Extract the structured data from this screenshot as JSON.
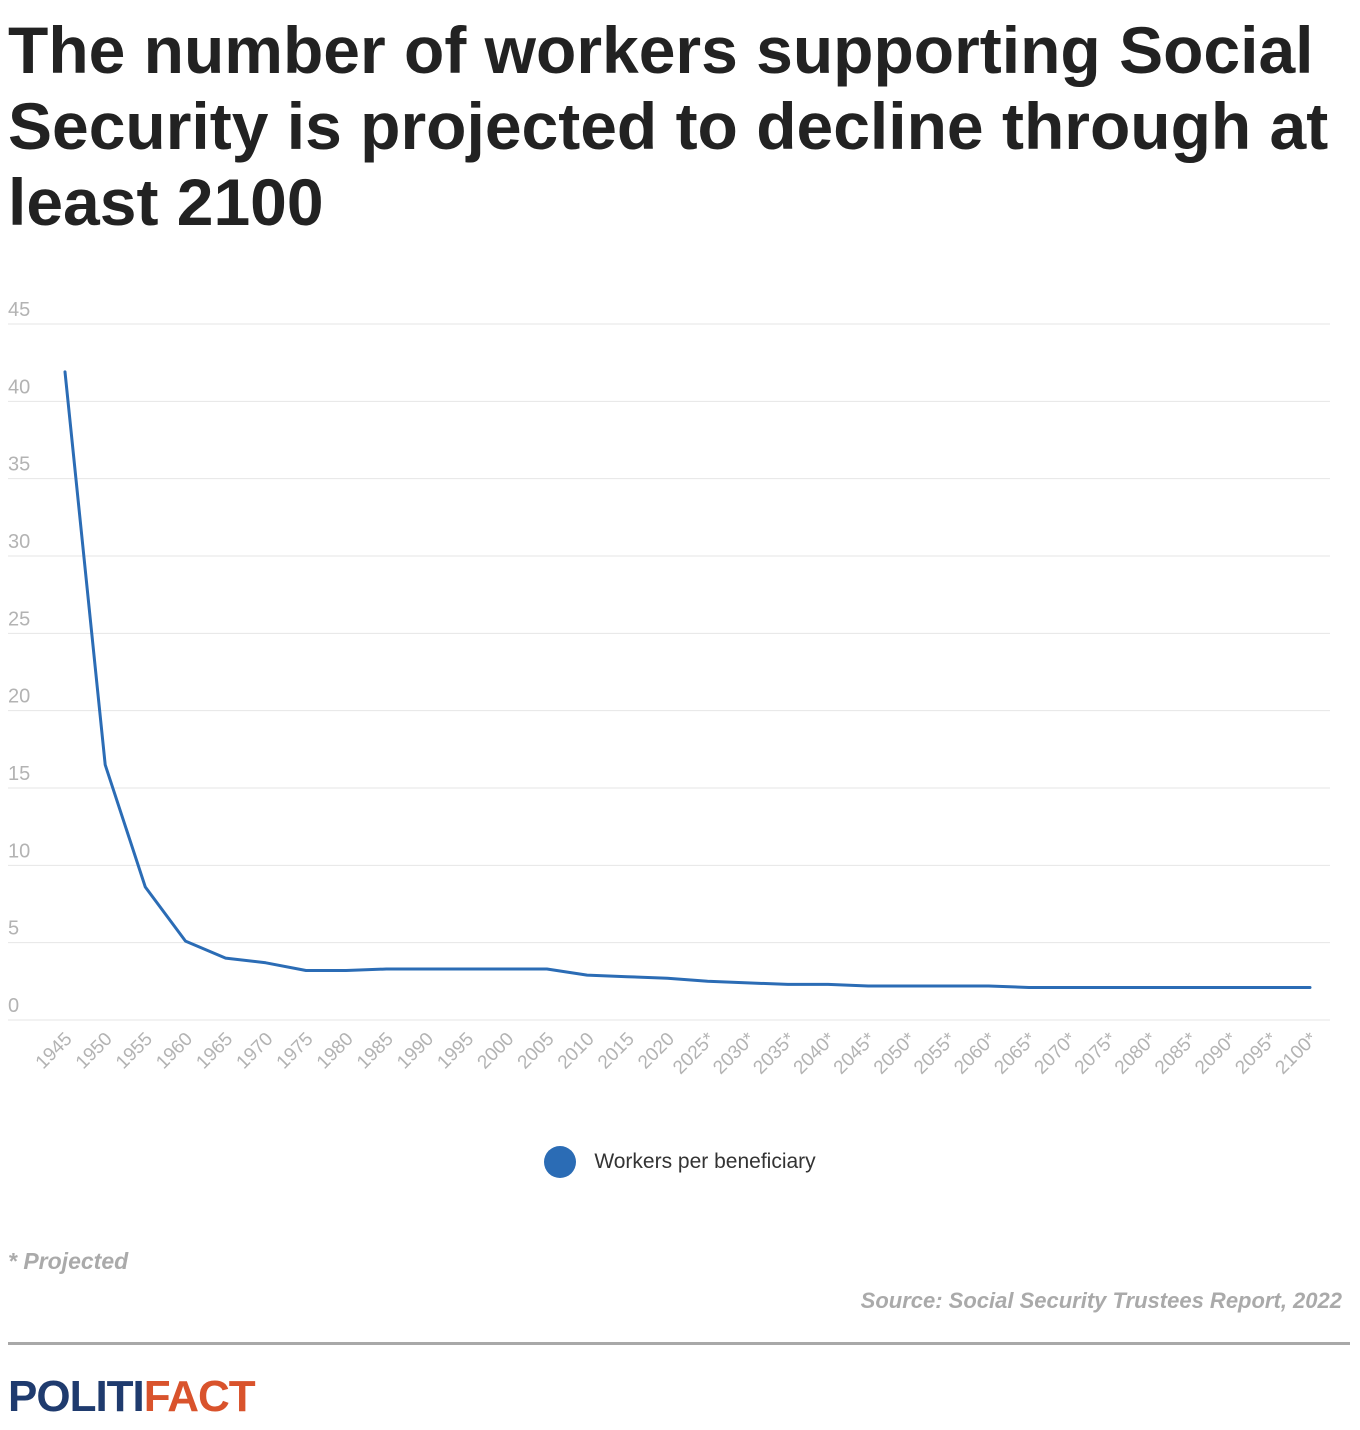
{
  "title": "The number of workers supporting Social Security is projected to decline through at least 2100",
  "chart_data": {
    "type": "line",
    "categories": [
      "1945",
      "1950",
      "1955",
      "1960",
      "1965",
      "1970",
      "1975",
      "1980",
      "1985",
      "1990",
      "1995",
      "2000",
      "2005",
      "2010",
      "2015",
      "2020",
      "2025*",
      "2030*",
      "2035*",
      "2040*",
      "2045*",
      "2050*",
      "2055*",
      "2060*",
      "2065*",
      "2070*",
      "2075*",
      "2080*",
      "2085*",
      "2090*",
      "2095*",
      "2100*"
    ],
    "series": [
      {
        "name": "Workers per beneficiary",
        "color": "#2b6cb5",
        "values": [
          41.9,
          16.5,
          8.6,
          5.1,
          4.0,
          3.7,
          3.2,
          3.2,
          3.3,
          3.3,
          3.3,
          3.3,
          3.3,
          2.9,
          2.8,
          2.7,
          2.5,
          2.4,
          2.3,
          2.3,
          2.2,
          2.2,
          2.2,
          2.2,
          2.1,
          2.1,
          2.1,
          2.1,
          2.1,
          2.1,
          2.1,
          2.1
        ]
      }
    ],
    "yticks": [
      0,
      5,
      10,
      15,
      20,
      25,
      30,
      35,
      40,
      45
    ],
    "ylim": [
      0,
      45
    ],
    "grid": true,
    "legend_position": "bottom-center",
    "colors": {
      "line": "#2b6cb5",
      "grid": "#e6e6e6",
      "tick_text": "#b3b3b3"
    }
  },
  "legend": {
    "label": "Workers per beneficiary",
    "color": "#2b6cb5"
  },
  "note": "* Projected",
  "source": "Source: Social Security Trustees Report, 2022",
  "logo": {
    "part1": "POLITI",
    "part2": "FACT"
  }
}
